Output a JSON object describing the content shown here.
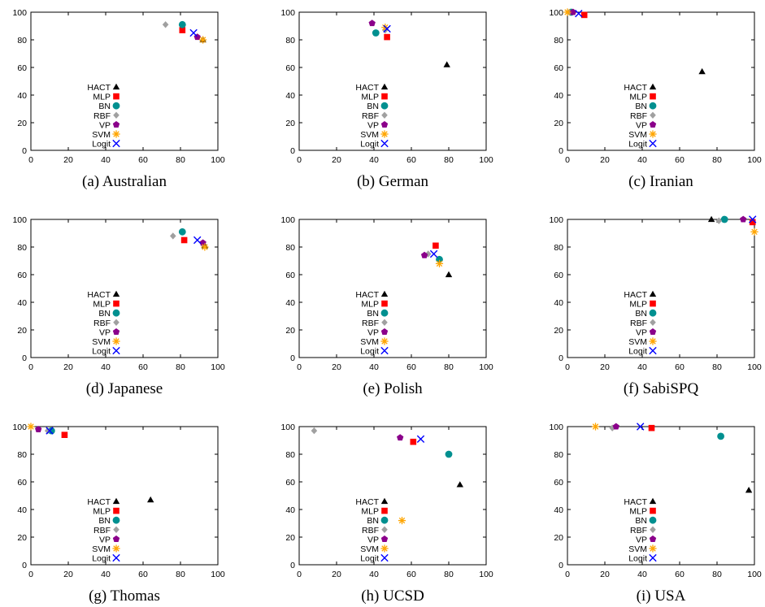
{
  "chart_data": [
    {
      "type": "scatter",
      "caption": "(a) Australian",
      "xlim": [
        0,
        100
      ],
      "ylim": [
        0,
        100
      ],
      "xticks": [
        0,
        20,
        40,
        60,
        80,
        100
      ],
      "yticks": [
        0,
        20,
        40,
        60,
        80,
        100
      ],
      "legend_position": "bottom-left",
      "series": [
        {
          "name": "HACT",
          "points": [
            [
              92,
              80
            ]
          ]
        },
        {
          "name": "MLP",
          "points": [
            [
              81,
              87
            ]
          ]
        },
        {
          "name": "BN",
          "points": [
            [
              81,
              91
            ]
          ]
        },
        {
          "name": "RBF",
          "points": [
            [
              72,
              91
            ]
          ]
        },
        {
          "name": "VP",
          "points": [
            [
              89,
              82
            ]
          ]
        },
        {
          "name": "SVM",
          "points": [
            [
              92,
              80
            ]
          ]
        },
        {
          "name": "Logit",
          "points": [
            [
              87,
              85
            ]
          ]
        }
      ]
    },
    {
      "type": "scatter",
      "caption": "(b) German",
      "xlim": [
        0,
        100
      ],
      "ylim": [
        0,
        100
      ],
      "xticks": [
        0,
        20,
        40,
        60,
        80,
        100
      ],
      "yticks": [
        0,
        20,
        40,
        60,
        80,
        100
      ],
      "legend_position": "bottom-left",
      "series": [
        {
          "name": "HACT",
          "points": [
            [
              79,
              62
            ]
          ]
        },
        {
          "name": "MLP",
          "points": [
            [
              47,
              82
            ]
          ]
        },
        {
          "name": "BN",
          "points": [
            [
              41,
              85
            ]
          ]
        },
        {
          "name": "RBF",
          "points": [
            [
              46,
              87
            ]
          ]
        },
        {
          "name": "VP",
          "points": [
            [
              39,
              92
            ]
          ]
        },
        {
          "name": "SVM",
          "points": [
            [
              46,
              89
            ]
          ]
        },
        {
          "name": "Logit",
          "points": [
            [
              47,
              88
            ]
          ]
        }
      ]
    },
    {
      "type": "scatter",
      "caption": "(c) Iranian",
      "xlim": [
        0,
        100
      ],
      "ylim": [
        0,
        100
      ],
      "xticks": [
        0,
        20,
        40,
        60,
        80,
        100
      ],
      "yticks": [
        0,
        20,
        40,
        60,
        80,
        100
      ],
      "legend_position": "bottom-left",
      "series": [
        {
          "name": "HACT",
          "points": [
            [
              72,
              57
            ]
          ]
        },
        {
          "name": "MLP",
          "points": [
            [
              9,
              98
            ]
          ]
        },
        {
          "name": "BN",
          "points": [
            [
              2,
              100
            ]
          ]
        },
        {
          "name": "RBF",
          "points": [
            [
              1,
              100
            ]
          ]
        },
        {
          "name": "VP",
          "points": [
            [
              3,
              100
            ]
          ]
        },
        {
          "name": "SVM",
          "points": [
            [
              0,
              100
            ]
          ]
        },
        {
          "name": "Logit",
          "points": [
            [
              6,
              99
            ]
          ]
        }
      ]
    },
    {
      "type": "scatter",
      "caption": "(d) Japanese",
      "xlim": [
        0,
        100
      ],
      "ylim": [
        0,
        100
      ],
      "xticks": [
        0,
        20,
        40,
        60,
        80,
        100
      ],
      "yticks": [
        0,
        20,
        40,
        60,
        80,
        100
      ],
      "legend_position": "bottom-left",
      "series": [
        {
          "name": "HACT",
          "points": [
            [
              93,
              81
            ]
          ]
        },
        {
          "name": "MLP",
          "points": [
            [
              82,
              85
            ]
          ]
        },
        {
          "name": "BN",
          "points": [
            [
              81,
              91
            ]
          ]
        },
        {
          "name": "RBF",
          "points": [
            [
              76,
              88
            ]
          ]
        },
        {
          "name": "VP",
          "points": [
            [
              92,
              83
            ]
          ]
        },
        {
          "name": "SVM",
          "points": [
            [
              93,
              80
            ]
          ]
        },
        {
          "name": "Logit",
          "points": [
            [
              89,
              85
            ]
          ]
        }
      ]
    },
    {
      "type": "scatter",
      "caption": "(e) Polish",
      "xlim": [
        0,
        100
      ],
      "ylim": [
        0,
        100
      ],
      "xticks": [
        0,
        20,
        40,
        60,
        80,
        100
      ],
      "yticks": [
        0,
        20,
        40,
        60,
        80,
        100
      ],
      "legend_position": "bottom-left",
      "series": [
        {
          "name": "HACT",
          "points": [
            [
              80,
              60
            ]
          ]
        },
        {
          "name": "MLP",
          "points": [
            [
              73,
              81
            ]
          ]
        },
        {
          "name": "BN",
          "points": [
            [
              75,
              71
            ]
          ]
        },
        {
          "name": "RBF",
          "points": [
            [
              69,
              75
            ]
          ]
        },
        {
          "name": "VP",
          "points": [
            [
              67,
              74
            ]
          ]
        },
        {
          "name": "SVM",
          "points": [
            [
              75,
              68
            ]
          ]
        },
        {
          "name": "Logit",
          "points": [
            [
              72,
              75
            ]
          ]
        }
      ]
    },
    {
      "type": "scatter",
      "caption": "(f) SabiSPQ",
      "xlim": [
        0,
        100
      ],
      "ylim": [
        0,
        100
      ],
      "xticks": [
        0,
        20,
        40,
        60,
        80,
        100
      ],
      "yticks": [
        0,
        20,
        40,
        60,
        80,
        100
      ],
      "legend_position": "bottom-left",
      "series": [
        {
          "name": "HACT",
          "points": [
            [
              77,
              100
            ]
          ]
        },
        {
          "name": "MLP",
          "points": [
            [
              99,
              98
            ]
          ]
        },
        {
          "name": "BN",
          "points": [
            [
              84,
              100
            ]
          ]
        },
        {
          "name": "RBF",
          "points": [
            [
              81,
              99
            ]
          ]
        },
        {
          "name": "VP",
          "points": [
            [
              94,
              100
            ]
          ]
        },
        {
          "name": "SVM",
          "points": [
            [
              100,
              91
            ]
          ]
        },
        {
          "name": "Logit",
          "points": [
            [
              99,
              100
            ]
          ]
        }
      ]
    },
    {
      "type": "scatter",
      "caption": "(g) Thomas",
      "xlim": [
        0,
        100
      ],
      "ylim": [
        0,
        100
      ],
      "xticks": [
        0,
        20,
        40,
        60,
        80,
        100
      ],
      "yticks": [
        0,
        20,
        40,
        60,
        80,
        100
      ],
      "legend_position": "bottom-left",
      "series": [
        {
          "name": "HACT",
          "points": [
            [
              64,
              47
            ]
          ]
        },
        {
          "name": "MLP",
          "points": [
            [
              18,
              94
            ]
          ]
        },
        {
          "name": "BN",
          "points": [
            [
              11,
              97
            ]
          ]
        },
        {
          "name": "RBF",
          "points": [
            [
              9,
              97
            ]
          ]
        },
        {
          "name": "VP",
          "points": [
            [
              4,
              98
            ]
          ]
        },
        {
          "name": "SVM",
          "points": [
            [
              0,
              100
            ]
          ]
        },
        {
          "name": "Logit",
          "points": [
            [
              10,
              97
            ]
          ]
        }
      ]
    },
    {
      "type": "scatter",
      "caption": "(h) UCSD",
      "xlim": [
        0,
        100
      ],
      "ylim": [
        0,
        100
      ],
      "xticks": [
        0,
        20,
        40,
        60,
        80,
        100
      ],
      "yticks": [
        0,
        20,
        40,
        60,
        80,
        100
      ],
      "legend_position": "bottom-left",
      "series": [
        {
          "name": "HACT",
          "points": [
            [
              86,
              58
            ]
          ]
        },
        {
          "name": "MLP",
          "points": [
            [
              61,
              89
            ]
          ]
        },
        {
          "name": "BN",
          "points": [
            [
              80,
              80
            ]
          ]
        },
        {
          "name": "RBF",
          "points": [
            [
              8,
              97
            ]
          ]
        },
        {
          "name": "VP",
          "points": [
            [
              54,
              92
            ]
          ]
        },
        {
          "name": "SVM",
          "points": [
            [
              55,
              32
            ]
          ]
        },
        {
          "name": "Logit",
          "points": [
            [
              65,
              91
            ]
          ]
        }
      ]
    },
    {
      "type": "scatter",
      "caption": "(i) USA",
      "xlim": [
        0,
        100
      ],
      "ylim": [
        0,
        100
      ],
      "xticks": [
        0,
        20,
        40,
        60,
        80,
        100
      ],
      "yticks": [
        0,
        20,
        40,
        60,
        80,
        100
      ],
      "legend_position": "bottom-left",
      "series": [
        {
          "name": "HACT",
          "points": [
            [
              97,
              54
            ]
          ]
        },
        {
          "name": "MLP",
          "points": [
            [
              45,
              99
            ]
          ]
        },
        {
          "name": "BN",
          "points": [
            [
              82,
              93
            ]
          ]
        },
        {
          "name": "RBF",
          "points": [
            [
              24,
              99
            ]
          ]
        },
        {
          "name": "VP",
          "points": [
            [
              26,
              100
            ]
          ]
        },
        {
          "name": "SVM",
          "points": [
            [
              15,
              100
            ]
          ]
        },
        {
          "name": "Logit",
          "points": [
            [
              39,
              100
            ]
          ]
        }
      ]
    }
  ],
  "markers": {
    "HACT": {
      "shape": "triangle-icon",
      "color": "#000000"
    },
    "MLP": {
      "shape": "square-icon",
      "color": "#ff0000"
    },
    "BN": {
      "shape": "circle-icon",
      "color": "#009090"
    },
    "RBF": {
      "shape": "diamond-icon",
      "color": "#a0a0a0"
    },
    "VP": {
      "shape": "pentagon-icon",
      "color": "#8b008b"
    },
    "SVM": {
      "shape": "asterisk-icon",
      "color": "#ffa500"
    },
    "Logit": {
      "shape": "x-icon",
      "color": "#0000ff"
    }
  }
}
